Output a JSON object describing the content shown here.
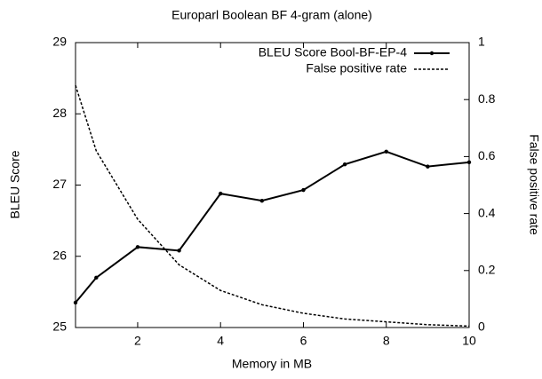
{
  "chart_data": {
    "type": "line",
    "title": "Europarl Boolean BF 4-gram (alone)",
    "xlabel": "Memory in MB",
    "ylabel": "BLEU Score",
    "y2label": "False positive rate",
    "x": [
      0.5,
      1,
      2,
      3,
      4,
      5,
      6,
      7,
      8,
      9,
      10
    ],
    "series": [
      {
        "name": "BLEU Score Bool-BF-EP-4",
        "color": "#000000",
        "line_style": "solid",
        "markers": true,
        "values": [
          25.35,
          25.7,
          26.13,
          26.08,
          26.88,
          26.78,
          26.93,
          27.29,
          27.47,
          27.26,
          27.32
        ]
      },
      {
        "name": "False positive rate",
        "color": "#000000",
        "line_style": "dashed",
        "markers": false,
        "axis": "y2",
        "values": [
          0.85,
          0.62,
          0.38,
          0.22,
          0.13,
          0.08,
          0.05,
          0.03,
          0.02,
          0.01,
          0.005
        ]
      }
    ],
    "xlim": [
      0.5,
      10
    ],
    "xticks": [
      2,
      4,
      6,
      8,
      10
    ],
    "ylim": [
      25,
      29
    ],
    "yticks": [
      25,
      26,
      27,
      28,
      29
    ],
    "y2lim": [
      0,
      1
    ],
    "y2ticks": [
      0,
      0.2,
      0.4,
      0.6,
      0.8,
      1
    ],
    "legend": "top-right"
  }
}
